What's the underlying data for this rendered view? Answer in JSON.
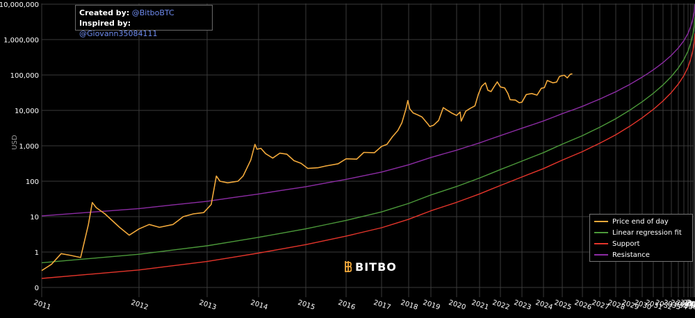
{
  "credits": {
    "created_label": "Created by:",
    "created_value": "@BitboBTC",
    "inspired_label": "Inspired by:",
    "inspired_value": "@Giovann35084111"
  },
  "logo": {
    "text": "BITBO",
    "icon": "bitbo-logo-icon"
  },
  "colors": {
    "price": "#f2a93b",
    "regression": "#4c9a3a",
    "support": "#e5352b",
    "resistance": "#8d2ca5"
  },
  "chart_data": {
    "type": "line",
    "scale": "log",
    "ylabel": "USD",
    "y_ticks": [
      "10,000,000",
      "1,000,000",
      "100,000",
      "10,000",
      "1,000",
      "100",
      "10",
      "1",
      "0"
    ],
    "x_ticks": [
      "2011",
      "2012",
      "2013",
      "2014",
      "2015",
      "2016",
      "2017",
      "2018",
      "2019",
      "2020",
      "2021",
      "2022",
      "2023",
      "2024",
      "2025",
      "2026",
      "2027",
      "2028",
      "2029",
      "2030",
      "2031",
      "2032",
      "2033",
      "2034",
      "2035",
      "2036",
      "2037",
      "2038",
      "2039",
      "2040"
    ],
    "grid": true,
    "legend_position": "bottom-right",
    "legend": [
      "Price end of day",
      "Linear regression fit",
      "Support",
      "Resistance"
    ],
    "series": [
      {
        "name": "Price end of day",
        "points": [
          [
            2011.0,
            0.3
          ],
          [
            2011.1,
            0.45
          ],
          [
            2011.2,
            0.9
          ],
          [
            2011.3,
            0.8
          ],
          [
            2011.4,
            0.7
          ],
          [
            2011.48,
            6
          ],
          [
            2011.52,
            25
          ],
          [
            2011.56,
            18
          ],
          [
            2011.65,
            12
          ],
          [
            2011.8,
            5
          ],
          [
            2011.9,
            3
          ],
          [
            2012.0,
            4.5
          ],
          [
            2012.15,
            6
          ],
          [
            2012.3,
            5
          ],
          [
            2012.5,
            6
          ],
          [
            2012.65,
            10
          ],
          [
            2012.8,
            12
          ],
          [
            2012.95,
            13
          ],
          [
            2013.08,
            22
          ],
          [
            2013.18,
            140
          ],
          [
            2013.25,
            100
          ],
          [
            2013.4,
            90
          ],
          [
            2013.6,
            100
          ],
          [
            2013.7,
            140
          ],
          [
            2013.85,
            400
          ],
          [
            2013.93,
            1100
          ],
          [
            2013.97,
            800
          ],
          [
            2014.05,
            850
          ],
          [
            2014.15,
            600
          ],
          [
            2014.3,
            450
          ],
          [
            2014.45,
            620
          ],
          [
            2014.6,
            580
          ],
          [
            2014.75,
            380
          ],
          [
            2014.9,
            320
          ],
          [
            2015.05,
            230
          ],
          [
            2015.3,
            240
          ],
          [
            2015.5,
            270
          ],
          [
            2015.8,
            310
          ],
          [
            2016.0,
            430
          ],
          [
            2016.3,
            420
          ],
          [
            2016.5,
            650
          ],
          [
            2016.8,
            640
          ],
          [
            2017.0,
            960
          ],
          [
            2017.2,
            1100
          ],
          [
            2017.4,
            1800
          ],
          [
            2017.6,
            2700
          ],
          [
            2017.75,
            4500
          ],
          [
            2017.9,
            11000
          ],
          [
            2017.97,
            19000
          ],
          [
            2018.05,
            11000
          ],
          [
            2018.2,
            8500
          ],
          [
            2018.4,
            7500
          ],
          [
            2018.6,
            6500
          ],
          [
            2018.88,
            4000
          ],
          [
            2018.95,
            3500
          ],
          [
            2019.1,
            3800
          ],
          [
            2019.3,
            5200
          ],
          [
            2019.48,
            12000
          ],
          [
            2019.6,
            10500
          ],
          [
            2019.8,
            8500
          ],
          [
            2020.0,
            7200
          ],
          [
            2020.15,
            9000
          ],
          [
            2020.2,
            5000
          ],
          [
            2020.4,
            9500
          ],
          [
            2020.6,
            11500
          ],
          [
            2020.8,
            13500
          ],
          [
            2020.95,
            29000
          ],
          [
            2021.1,
            48000
          ],
          [
            2021.28,
            60000
          ],
          [
            2021.4,
            37000
          ],
          [
            2021.55,
            34000
          ],
          [
            2021.7,
            47000
          ],
          [
            2021.85,
            64000
          ],
          [
            2022.0,
            46000
          ],
          [
            2022.2,
            43000
          ],
          [
            2022.35,
            30000
          ],
          [
            2022.45,
            20000
          ],
          [
            2022.7,
            19500
          ],
          [
            2022.87,
            16500
          ],
          [
            2023.0,
            17000
          ],
          [
            2023.2,
            28000
          ],
          [
            2023.45,
            30000
          ],
          [
            2023.7,
            27000
          ],
          [
            2023.9,
            42000
          ],
          [
            2024.05,
            44000
          ],
          [
            2024.2,
            70000
          ],
          [
            2024.5,
            60000
          ],
          [
            2024.7,
            63000
          ],
          [
            2024.85,
            90000
          ],
          [
            2024.97,
            95000
          ],
          [
            2025.1,
            98000
          ],
          [
            2025.25,
            83000
          ],
          [
            2025.4,
            105000
          ],
          [
            2025.5,
            108000
          ]
        ]
      },
      {
        "name": "Linear regression fit",
        "points": [
          [
            2011.0,
            0.5
          ],
          [
            2040.0,
            4300000
          ]
        ]
      },
      {
        "name": "Support",
        "points": [
          [
            2011.0,
            0.18
          ],
          [
            2040.0,
            1500000
          ]
        ]
      },
      {
        "name": "Resistance",
        "points": [
          [
            2011.0,
            10.5
          ],
          [
            2040.0,
            10000000
          ]
        ]
      }
    ]
  }
}
